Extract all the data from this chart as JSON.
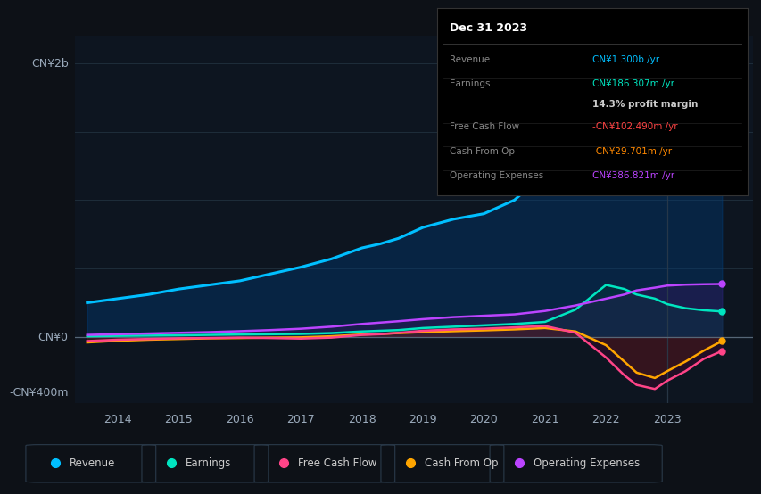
{
  "background_color": "#0d1117",
  "plot_bg_color": "#0d1520",
  "xlim": [
    2013.3,
    2024.4
  ],
  "ylim": [
    -480000000,
    2200000000
  ],
  "years": [
    2013.5,
    2014.0,
    2014.5,
    2015.0,
    2015.5,
    2016.0,
    2016.5,
    2017.0,
    2017.5,
    2018.0,
    2018.3,
    2018.6,
    2019.0,
    2019.5,
    2020.0,
    2020.5,
    2021.0,
    2021.5,
    2022.0,
    2022.3,
    2022.5,
    2022.8,
    2023.0,
    2023.3,
    2023.6,
    2023.9
  ],
  "revenue": [
    250000000,
    280000000,
    310000000,
    350000000,
    380000000,
    410000000,
    460000000,
    510000000,
    570000000,
    650000000,
    680000000,
    720000000,
    800000000,
    860000000,
    900000000,
    1000000000,
    1200000000,
    1600000000,
    2000000000,
    2050000000,
    1950000000,
    1750000000,
    1550000000,
    1450000000,
    1380000000,
    1300000000
  ],
  "earnings": [
    5000000,
    8000000,
    10000000,
    12000000,
    15000000,
    18000000,
    20000000,
    22000000,
    28000000,
    40000000,
    45000000,
    50000000,
    65000000,
    75000000,
    85000000,
    95000000,
    110000000,
    200000000,
    380000000,
    350000000,
    310000000,
    280000000,
    240000000,
    210000000,
    195000000,
    186307000
  ],
  "free_cash_flow": [
    -30000000,
    -20000000,
    -15000000,
    -10000000,
    -8000000,
    -5000000,
    -8000000,
    -12000000,
    -5000000,
    15000000,
    20000000,
    30000000,
    45000000,
    55000000,
    60000000,
    70000000,
    80000000,
    30000000,
    -150000000,
    -280000000,
    -350000000,
    -380000000,
    -320000000,
    -250000000,
    -160000000,
    -102490000
  ],
  "cash_from_op": [
    -40000000,
    -28000000,
    -20000000,
    -15000000,
    -10000000,
    -8000000,
    -5000000,
    -3000000,
    5000000,
    18000000,
    22000000,
    28000000,
    35000000,
    42000000,
    48000000,
    55000000,
    65000000,
    40000000,
    -60000000,
    -180000000,
    -260000000,
    -300000000,
    -250000000,
    -180000000,
    -100000000,
    -29701000
  ],
  "operating_expenses": [
    15000000,
    20000000,
    25000000,
    30000000,
    35000000,
    42000000,
    50000000,
    60000000,
    75000000,
    95000000,
    105000000,
    115000000,
    130000000,
    145000000,
    155000000,
    165000000,
    190000000,
    230000000,
    280000000,
    310000000,
    340000000,
    360000000,
    375000000,
    382000000,
    385000000,
    386821000
  ],
  "revenue_color": "#00bfff",
  "earnings_color": "#00e5c0",
  "fcf_color": "#ff4488",
  "cfop_color": "#ffa500",
  "opex_color": "#bb44ff",
  "y_label_top": "CN¥2b",
  "y_label_zero": "CN¥0",
  "y_label_neg": "-CN¥400m",
  "vline_x": 2023.0,
  "tooltip_title": "Dec 31 2023",
  "tooltip_rows": [
    {
      "label": "Revenue",
      "value": "CN¥1.300b /yr",
      "lc": "#888888",
      "vc": "#00bfff"
    },
    {
      "label": "Earnings",
      "value": "CN¥186.307m /yr",
      "lc": "#888888",
      "vc": "#00e5c0"
    },
    {
      "label": "",
      "value": "14.3% profit margin",
      "lc": "#888888",
      "vc": "#cccccc"
    },
    {
      "label": "Free Cash Flow",
      "value": "-CN¥102.490m /yr",
      "lc": "#888888",
      "vc": "#ff4444"
    },
    {
      "label": "Cash From Op",
      "value": "-CN¥29.701m /yr",
      "lc": "#888888",
      "vc": "#ff8800"
    },
    {
      "label": "Operating Expenses",
      "value": "CN¥386.821m /yr",
      "lc": "#888888",
      "vc": "#bb44ff"
    }
  ],
  "legend": [
    {
      "label": "Revenue",
      "color": "#00bfff"
    },
    {
      "label": "Earnings",
      "color": "#00e5c0"
    },
    {
      "label": "Free Cash Flow",
      "color": "#ff4488"
    },
    {
      "label": "Cash From Op",
      "color": "#ffa500"
    },
    {
      "label": "Operating Expenses",
      "color": "#bb44ff"
    }
  ],
  "xticks": [
    2014,
    2015,
    2016,
    2017,
    2018,
    2019,
    2020,
    2021,
    2022,
    2023
  ]
}
